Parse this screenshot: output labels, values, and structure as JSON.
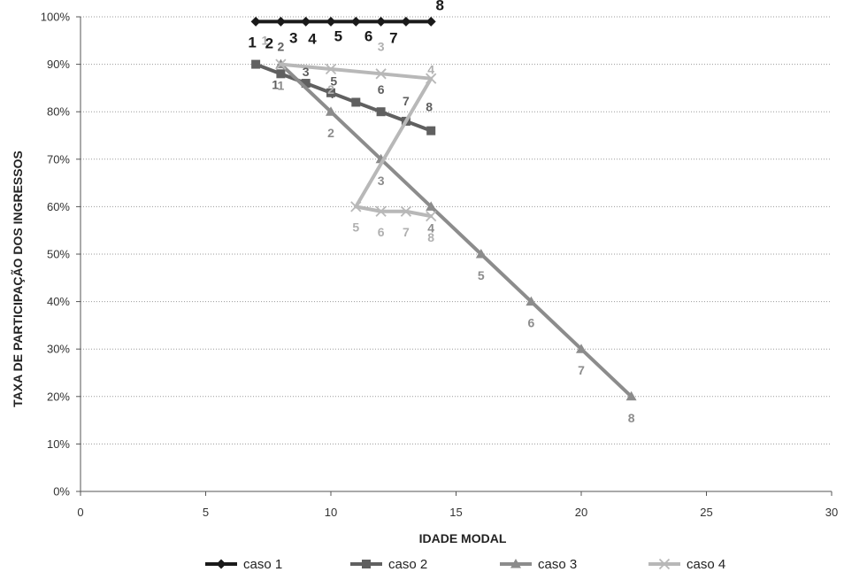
{
  "chart_data": {
    "type": "line",
    "title": "",
    "xlabel": "IDADE MODAL",
    "ylabel": "TAXA DE PARTICIPAÇÃO DOS INGRESSOS",
    "xlim": [
      0,
      30
    ],
    "ylim": [
      0,
      100
    ],
    "x_ticks": [
      0,
      5,
      10,
      15,
      20,
      25,
      30
    ],
    "x_tick_labels": [
      "0",
      "5",
      "10",
      "15",
      "20",
      "25",
      "30"
    ],
    "y_ticks": [
      0,
      10,
      20,
      30,
      40,
      50,
      60,
      70,
      80,
      90,
      100
    ],
    "y_tick_labels": [
      "0%",
      "10%",
      "20%",
      "30%",
      "40%",
      "50%",
      "60%",
      "70%",
      "80%",
      "90%",
      "100%"
    ],
    "grid": "horizontal dotted",
    "legend_position": "bottom",
    "series": [
      {
        "name": "caso 1",
        "color": "#1a1a1a",
        "marker": "diamond",
        "x": [
          7,
          8,
          9,
          10,
          11,
          12,
          13,
          14
        ],
        "y": [
          99,
          99,
          99,
          99,
          99,
          99,
          99,
          99
        ],
        "point_labels": [
          "1",
          "2",
          "3",
          "4",
          "5",
          "6",
          "7",
          "8"
        ]
      },
      {
        "name": "caso 2",
        "color": "#606060",
        "marker": "square",
        "x": [
          7,
          8,
          9,
          10,
          11,
          12,
          13,
          14
        ],
        "y": [
          90,
          88,
          86,
          84,
          82,
          80,
          78,
          76
        ],
        "point_labels": [
          "1",
          "2",
          "3",
          "4",
          "5",
          "6",
          "7",
          "8"
        ]
      },
      {
        "name": "caso 3",
        "color": "#8c8c8c",
        "marker": "triangle",
        "x": [
          8,
          10,
          12,
          14,
          16,
          18,
          20,
          22
        ],
        "y": [
          90,
          80,
          70,
          60,
          50,
          40,
          30,
          20
        ],
        "point_labels": [
          "1",
          "2",
          "3",
          "4",
          "5",
          "6",
          "7",
          "8"
        ]
      },
      {
        "name": "caso 4",
        "color": "#b8b8b8",
        "marker": "x",
        "x": [
          8,
          10,
          12,
          14,
          11,
          12,
          13,
          14
        ],
        "y": [
          90,
          89,
          88,
          87,
          60,
          59,
          59,
          58
        ],
        "point_labels": [
          "1",
          "2",
          "3",
          "4",
          "5",
          "6",
          "7",
          "8"
        ]
      }
    ]
  }
}
